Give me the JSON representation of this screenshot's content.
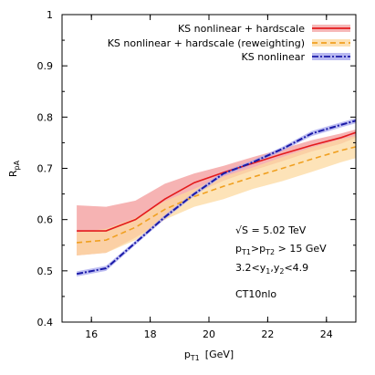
{
  "chart_data": {
    "type": "line",
    "xlabel": "p",
    "xlabel_sub": "T1",
    "xlabel_unit": "[GeV]",
    "ylabel": "R",
    "ylabel_sub": "pA",
    "xlim": [
      15,
      25
    ],
    "ylim": [
      0.4,
      1.0
    ],
    "xticks": [
      16,
      18,
      20,
      22,
      24
    ],
    "yticks": [
      0.4,
      0.5,
      0.6,
      0.7,
      0.8,
      0.9,
      1.0
    ],
    "ytick_labels": [
      "0.4",
      "0.5",
      "0.6",
      "0.7",
      "0.8",
      "0.9",
      "1"
    ],
    "legend_position": "top-right",
    "series": [
      {
        "name": "KS nonlinear + hardscale",
        "color": "#e41a1c",
        "band_color": "#f4a6a6",
        "style": "solid",
        "x": [
          15.5,
          16.5,
          17.5,
          18.5,
          19.5,
          20.5,
          21.5,
          22.5,
          23.5,
          24.5,
          25.0
        ],
        "y": [
          0.578,
          0.578,
          0.6,
          0.64,
          0.672,
          0.692,
          0.71,
          0.728,
          0.745,
          0.76,
          0.77
        ],
        "lower": [
          0.53,
          0.535,
          0.565,
          0.6,
          0.65,
          0.676,
          0.696,
          0.714,
          0.733,
          0.748,
          0.76
        ],
        "upper": [
          0.628,
          0.625,
          0.637,
          0.67,
          0.69,
          0.705,
          0.722,
          0.738,
          0.755,
          0.768,
          0.776
        ]
      },
      {
        "name": "KS nonlinear + hardscale (reweighting)",
        "color": "#f0a020",
        "band_color": "#fcd9a0",
        "style": "dashed",
        "x": [
          15.5,
          16.5,
          17.5,
          18.5,
          19.5,
          20.5,
          21.5,
          22.5,
          23.5,
          24.5,
          25.0
        ],
        "y": [
          0.555,
          0.56,
          0.585,
          0.62,
          0.645,
          0.665,
          0.683,
          0.7,
          0.718,
          0.735,
          0.742
        ],
        "lower": [
          0.53,
          0.535,
          0.56,
          0.6,
          0.625,
          0.64,
          0.66,
          0.675,
          0.693,
          0.712,
          0.72
        ],
        "upper": [
          0.575,
          0.582,
          0.603,
          0.636,
          0.66,
          0.684,
          0.702,
          0.722,
          0.741,
          0.757,
          0.763
        ]
      },
      {
        "name": "KS nonlinear",
        "color": "#1a1aa8",
        "band_color": "#a8a8ee",
        "style": "dash-dot",
        "x": [
          15.5,
          16.5,
          17.5,
          18.5,
          19.5,
          20.5,
          21.5,
          22.5,
          23.5,
          24.5,
          25.0
        ],
        "y": [
          0.494,
          0.505,
          0.555,
          0.605,
          0.65,
          0.69,
          0.712,
          0.738,
          0.768,
          0.785,
          0.793
        ],
        "lower": [
          0.489,
          0.5,
          0.551,
          0.601,
          0.646,
          0.686,
          0.708,
          0.734,
          0.763,
          0.78,
          0.788
        ],
        "upper": [
          0.499,
          0.51,
          0.559,
          0.609,
          0.654,
          0.694,
          0.716,
          0.742,
          0.773,
          0.79,
          0.798
        ]
      }
    ],
    "annotations": {
      "line1": "√S = 5.02 TeV",
      "line2": {
        "a": "p",
        "a_sub": "T1",
        "b": ">p",
        "b_sub": "T2",
        "c": " > 15 GeV"
      },
      "line3": {
        "a": "3.2<y",
        "a_sub": "1",
        "b": ",y",
        "b_sub": "2",
        "c": "<4.9"
      },
      "line4": "CT10nlo"
    }
  }
}
